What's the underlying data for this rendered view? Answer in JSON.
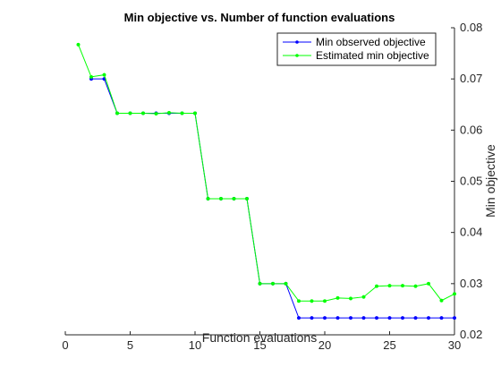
{
  "chart_data": {
    "type": "line",
    "title": "Min objective vs. Number of function evaluations",
    "xlabel": "Function evaluations",
    "ylabel": "Min objective",
    "xlim": [
      0,
      30
    ],
    "ylim": [
      0.02,
      0.08
    ],
    "xticks": [
      0,
      5,
      10,
      15,
      20,
      25,
      30
    ],
    "yticks": [
      0.02,
      0.03,
      0.04,
      0.05,
      0.06,
      0.07,
      0.08
    ],
    "ytick_labels": [
      "0.02",
      "0.03",
      "0.04",
      "0.05",
      "0.06",
      "0.07",
      "0.08"
    ],
    "y_axis_location": "right",
    "grid": false,
    "legend_location": "top-right",
    "series": [
      {
        "name": "Min observed objective",
        "color": "#0000ff",
        "marker": "dot",
        "x": [
          2,
          3,
          4,
          5,
          6,
          7,
          8,
          9,
          10,
          11,
          12,
          13,
          14,
          15,
          16,
          17,
          18,
          19,
          20,
          21,
          22,
          23,
          24,
          25,
          26,
          27,
          28,
          29,
          30
        ],
        "y": [
          0.07,
          0.07,
          0.0633,
          0.0633,
          0.0633,
          0.0633,
          0.0633,
          0.0633,
          0.0633,
          0.0466,
          0.0466,
          0.0466,
          0.0466,
          0.03,
          0.03,
          0.03,
          0.0233,
          0.0233,
          0.0233,
          0.0233,
          0.0233,
          0.0233,
          0.0233,
          0.0233,
          0.0233,
          0.0233,
          0.0233,
          0.0233,
          0.0233
        ]
      },
      {
        "name": "Estimated min objective",
        "color": "#00ff00",
        "marker": "dot",
        "x": [
          1,
          2,
          3,
          4,
          5,
          6,
          7,
          8,
          9,
          10,
          11,
          12,
          13,
          14,
          15,
          16,
          17,
          18,
          19,
          20,
          21,
          22,
          23,
          24,
          25,
          26,
          27,
          28,
          29,
          30
        ],
        "y": [
          0.0767,
          0.0704,
          0.0708,
          0.0633,
          0.0633,
          0.0633,
          0.0632,
          0.0634,
          0.0633,
          0.0633,
          0.0466,
          0.0466,
          0.0466,
          0.0466,
          0.03,
          0.03,
          0.03,
          0.0266,
          0.0266,
          0.0266,
          0.0272,
          0.0271,
          0.0274,
          0.0295,
          0.0296,
          0.0296,
          0.0295,
          0.03,
          0.0267,
          0.028
        ]
      }
    ]
  }
}
